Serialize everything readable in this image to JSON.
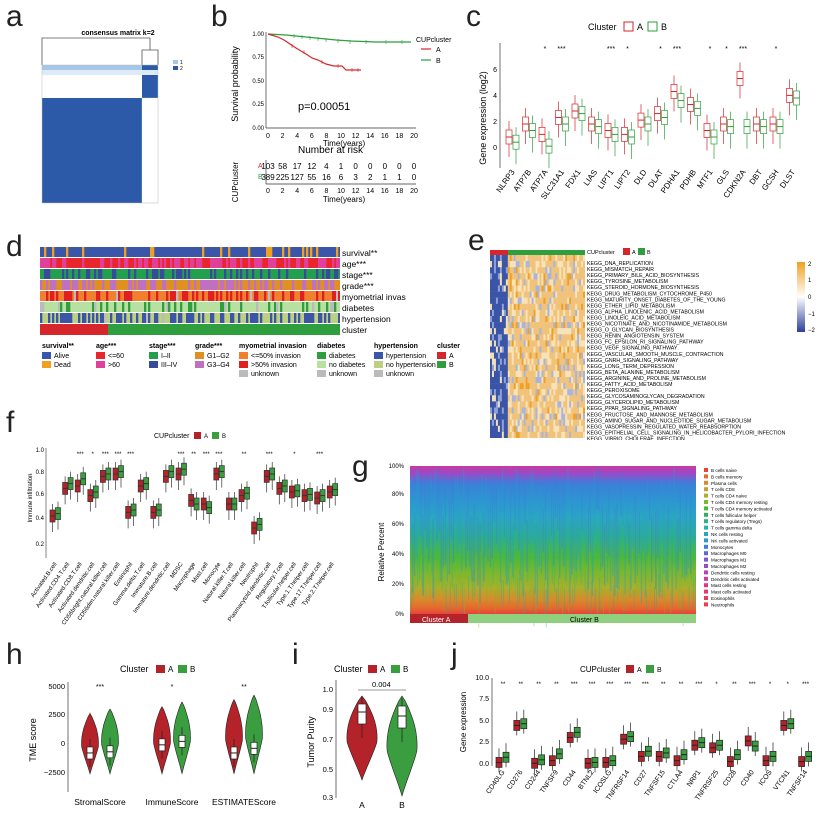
{
  "panel_labels": [
    "a",
    "b",
    "c",
    "d",
    "e",
    "f",
    "g",
    "h",
    "i",
    "j"
  ],
  "panel_a": {
    "title": "consensus matrix k=2",
    "legend": [
      "1",
      "2"
    ],
    "colors": {
      "c1": "#a6c8e8",
      "c2": "#2c5aa8"
    }
  },
  "panel_b": {
    "ylabel": "Survival probability",
    "xlabel": "Time(years)",
    "legend_title": "CUPcluster",
    "legend": [
      "A",
      "B"
    ],
    "pvalue": "p=0.00051",
    "yticks": [
      "0.00",
      "0.25",
      "0.50",
      "0.75",
      "1.00"
    ],
    "xticks": [
      "0",
      "2",
      "4",
      "6",
      "8",
      "10",
      "12",
      "14",
      "16",
      "18",
      "20"
    ],
    "risk_title": "Number at risk",
    "risk_ylabel": "CUPcluster",
    "risk_rows": [
      {
        "label": "A",
        "values": [
          "103",
          "58",
          "17",
          "12",
          "4",
          "1",
          "0",
          "0",
          "0",
          "0",
          "0"
        ]
      },
      {
        "label": "B",
        "values": [
          "389",
          "225",
          "127",
          "55",
          "16",
          "6",
          "3",
          "2",
          "1",
          "1",
          "0"
        ]
      }
    ],
    "colors": {
      "A": "#d7262b",
      "B": "#2e9e3e"
    }
  },
  "panel_c": {
    "legend_title": "Cluster",
    "legend": [
      "A",
      "B"
    ],
    "ylabel": "Gene expression (log2)",
    "yticks": [
      "0",
      "2",
      "4",
      "6"
    ],
    "genes": [
      "NLRP3",
      "ATP7B",
      "ATP7A",
      "SLC31A1",
      "FDX1",
      "LIAS",
      "LIPT1",
      "LIPT2",
      "DLD",
      "DLAT",
      "PDHA1",
      "PDHB",
      "MTF1",
      "GLS",
      "CDKN2A",
      "DBT",
      "GCSH",
      "DLST"
    ],
    "sig": [
      "",
      "",
      "*",
      "***",
      "",
      "",
      "***",
      "*",
      "",
      "*",
      "***",
      "",
      "*",
      "*",
      "***",
      "",
      "*",
      ""
    ],
    "colors": {
      "A": "#d7262b",
      "B": "#2e9e3e"
    }
  },
  "panel_d": {
    "rows": [
      "survival**",
      "age***",
      "stage***",
      "grade***",
      "myometrial invas",
      "diabetes",
      "hypertension",
      "cluster"
    ],
    "legend_groups": [
      {
        "title": "survival**",
        "items": [
          {
            "label": "Alive",
            "color": "#3b56a8"
          },
          {
            "label": "Dead",
            "color": "#f0a020"
          }
        ]
      },
      {
        "title": "age***",
        "items": [
          {
            "label": "<=60",
            "color": "#e8262b"
          },
          {
            "label": ">60",
            "color": "#e0409a"
          }
        ]
      },
      {
        "title": "stage***",
        "items": [
          {
            "label": "I–II",
            "color": "#22a050"
          },
          {
            "label": "III–IV",
            "color": "#3a4a9a"
          }
        ]
      },
      {
        "title": "grade***",
        "items": [
          {
            "label": "G1–G2",
            "color": "#e09020"
          },
          {
            "label": "G3–G4",
            "color": "#c070c0"
          }
        ]
      },
      {
        "title": "myometrial invasion",
        "items": [
          {
            "label": "<=50% invasion",
            "color": "#f08030"
          },
          {
            "label": ">50% invasion",
            "color": "#e02020"
          },
          {
            "label": "unknown",
            "color": "#bbbbbb"
          }
        ]
      },
      {
        "title": "diabetes",
        "items": [
          {
            "label": "diabetes",
            "color": "#2e9e3e"
          },
          {
            "label": "no diabetes",
            "color": "#b8e0a0"
          },
          {
            "label": "unknown",
            "color": "#bbbbbb"
          }
        ]
      },
      {
        "title": "hypertension",
        "items": [
          {
            "label": "hypertension",
            "color": "#3b56a8"
          },
          {
            "label": "no hypertension",
            "color": "#bcd080"
          },
          {
            "label": "unknown",
            "color": "#bbbbbb"
          }
        ]
      },
      {
        "title": "cluster",
        "items": [
          {
            "label": "A",
            "color": "#d7262b"
          },
          {
            "label": "B",
            "color": "#2e9e3e"
          }
        ]
      }
    ]
  },
  "panel_e": {
    "legend_title": "CUPcluster",
    "legend": [
      "A",
      "B"
    ],
    "scale_ticks": [
      "2",
      "1",
      "0",
      "−1",
      "−2"
    ],
    "pathways": [
      "KEGG_DNA_REPLICATION",
      "KEGG_MISMATCH_REPAIR",
      "KEGG_PRIMARY_BILE_ACID_BIOSYNTHESIS",
      "KEGG_TYROSINE_METABOLISM",
      "KEGG_STEROID_HORMONE_BIOSYNTHESIS",
      "KEGG_DRUG_METABOLISM_CYTOCHROME_P450",
      "KEGG_MATURITY_ONSET_DIABETES_OF_THE_YOUNG",
      "KEGG_ETHER_LIPID_METABOLISM",
      "KEGG_ALPHA_LINOLENIC_ACID_METABOLISM",
      "KEGG_LINOLEIC_ACID_METABOLISM",
      "KEGG_NICOTINATE_AND_NICOTINAMIDE_METABOLISM",
      "KEGG_O_GLYCAN_BIOSYNTHESIS",
      "KEGG_RENIN_ANGIOTENSIN_SYSTEM",
      "KEGG_FC_EPSILON_RI_SIGNALING_PATHWAY",
      "KEGG_VEGF_SIGNALING_PATHWAY",
      "KEGG_VASCULAR_SMOOTH_MUSCLE_CONTRACTION",
      "KEGG_GNRH_SIGNALING_PATHWAY",
      "KEGG_LONG_TERM_DEPRESSION",
      "KEGG_BETA_ALANINE_METABOLISM",
      "KEGG_ARGININE_AND_PROLINE_METABOLISM",
      "KEGG_FATTY_ACID_METABOLISM",
      "KEGG_PEROXISOME",
      "KEGG_GLYCOSAMINOGLYCAN_DEGRADATION",
      "KEGG_GLYCEROLIPID_METABOLISM",
      "KEGG_PPAR_SIGNALING_PATHWAY",
      "KEGG_FRUCTOSE_AND_MANNOSE_METABOLISM",
      "KEGG_AMINO_SUGAR_AND_NUCLEOTIDE_SUGAR_METABOLISM",
      "KEGG_VASOPRESSIN_REGULATED_WATER_REABSORPTION",
      "KEGG_EPITHELIAL_CELL_SIGNALING_IN_HELICOBACTER_PYLORI_INFECTION",
      "KEGG_VIBRIO_CHOLERAE_INFECTION"
    ]
  },
  "panel_f": {
    "legend_title": "CUPcluster",
    "legend": [
      "A",
      "B"
    ],
    "ylabel": "Immune infiltration",
    "yticks": [
      "0.2",
      "0.4",
      "0.6",
      "0.8",
      "1.0"
    ],
    "cells": [
      "Activated.B.cell",
      "Activated.CD4.T.cell",
      "Activated.CD8.T.cell",
      "Activated.dendritic.cell",
      "CD56bright.natural.killer.cell",
      "CD56dim.natural.killer.cell",
      "Eosinophil",
      "Gamma.delta.T.cell",
      "Immature.B.cell",
      "Immature.dendritic.cell",
      "MDSC",
      "Macrophage",
      "Mast.cell",
      "Monocyte",
      "Natural.killer.T.cell",
      "Natural.killer.cell",
      "Neutrophil",
      "Plasmacytoid.dendritic.cell",
      "Regulatory.T.cell",
      "T.follicular.helper.cell",
      "Type.1.T.helper.cell",
      "Type.17.T.helper.cell",
      "Type.2.T.helper.cell"
    ],
    "sig": [
      "",
      "",
      "***",
      "*",
      "***",
      "***",
      "***",
      "",
      "",
      "",
      "***",
      "**",
      "***",
      "***",
      "",
      "**",
      "",
      "***",
      "",
      "*",
      "",
      "***",
      ""
    ]
  },
  "panel_g": {
    "ylabel": "Relative Percent",
    "yticks": [
      "0%",
      "20%",
      "40%",
      "60%",
      "80%",
      "100%"
    ],
    "cluster_labels": [
      "Cluster A",
      "Cluster B"
    ],
    "legend": [
      {
        "label": "B cells naive",
        "color": "#e8423a"
      },
      {
        "label": "B cells memory",
        "color": "#e5682e"
      },
      {
        "label": "Plasma cells",
        "color": "#d98a2c"
      },
      {
        "label": "T cells CD8",
        "color": "#c8a030"
      },
      {
        "label": "T cells CD4 naive",
        "color": "#a8b02c"
      },
      {
        "label": "T cells CD4 memory resting",
        "color": "#7ab82e"
      },
      {
        "label": "T cells CD4 memory activated",
        "color": "#4cb83a"
      },
      {
        "label": "T cells follicular helper",
        "color": "#30b060"
      },
      {
        "label": "T cells regulatory (Tregs)",
        "color": "#2cb088"
      },
      {
        "label": "T cells gamma delta",
        "color": "#2cb0a8"
      },
      {
        "label": "NK cells resting",
        "color": "#2aa8c0"
      },
      {
        "label": "NK cells activated",
        "color": "#2c98d0"
      },
      {
        "label": "Monocytes",
        "color": "#3a80d8"
      },
      {
        "label": "Macrophages M0",
        "color": "#5a68d8"
      },
      {
        "label": "Macrophages M1",
        "color": "#7a58d0"
      },
      {
        "label": "Macrophages M2",
        "color": "#9a4ac8"
      },
      {
        "label": "Dendritic cells resting",
        "color": "#b840b8"
      },
      {
        "label": "Dendritic cells activated",
        "color": "#c83aa0"
      },
      {
        "label": "Mast cells resting",
        "color": "#d83888"
      },
      {
        "label": "Mast cells activated",
        "color": "#e03a70"
      },
      {
        "label": "Eosinophils",
        "color": "#e43e58"
      },
      {
        "label": "Neutrophils",
        "color": "#e84048"
      }
    ]
  },
  "panel_h": {
    "legend_title": "Cluster",
    "legend": [
      "A",
      "B"
    ],
    "ylabel": "TME score",
    "yticks": [
      "5000",
      "2500",
      "0",
      "−2500"
    ],
    "categories": [
      "StromalScore",
      "ImmuneScore",
      "ESTIMATEScore"
    ],
    "sig": [
      "***",
      "*",
      "**"
    ]
  },
  "panel_i": {
    "legend_title": "Cluster",
    "legend": [
      "A",
      "B"
    ],
    "ylabel": "Tumor Purity",
    "yticks": [
      "1.0",
      "0.9",
      "0.7",
      "0.5",
      "0.3"
    ],
    "categories": [
      "A",
      "B"
    ],
    "pvalue": "0.004"
  },
  "panel_j": {
    "legend_title": "CUPcluster",
    "legend": [
      "A",
      "B"
    ],
    "ylabel": "Gene expression",
    "yticks": [
      "0.0",
      "2.5",
      "5.0",
      "7.5",
      "10.0"
    ],
    "genes": [
      "CD40LG",
      "CD276",
      "CD244",
      "TNFSF9",
      "CD44",
      "BTNL2",
      "ICOSLG",
      "TNFRSF14",
      "CD27",
      "TNFSF15",
      "CTLA4",
      "NRP1",
      "TNFRSF25",
      "CD28",
      "CD40",
      "ICOS",
      "VTCN1",
      "TNFSF14"
    ],
    "sig": [
      "**",
      "**",
      "**",
      "**",
      "***",
      "***",
      "***",
      "***",
      "***",
      "**",
      "**",
      "***",
      "*",
      "**",
      "***",
      "*",
      "*",
      "***"
    ]
  },
  "colors": {
    "A": "#b5232a",
    "B": "#3a9d3f",
    "A_light": "#e25050",
    "B_light": "#5cc25a"
  }
}
